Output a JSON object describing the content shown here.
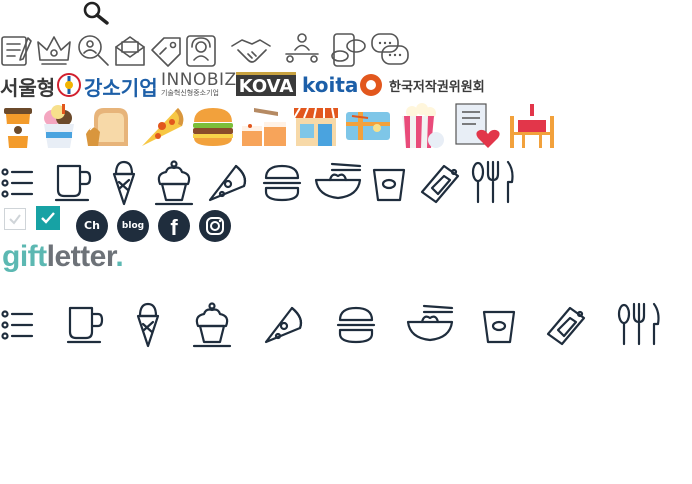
{
  "search": {
    "icon": "search-icon"
  },
  "outline_icons": [
    "form-icon",
    "crown-icon",
    "people-search-icon",
    "mail-icon",
    "coupon-tag-icon",
    "support-agent-icon",
    "handshake-icon",
    "org-chart-icon",
    "mobile-chat-icon",
    "chat-bubbles-icon"
  ],
  "certifications": {
    "seoul": "서울형",
    "gangso": "강소기업",
    "innobiz": "INNOBIZ",
    "innobiz_sub": "기술혁신형중소기업",
    "kova": "KOVA",
    "koita": "koita",
    "copyright": "한국저작권위원회"
  },
  "color_icons": [
    "coffee-cup-icon",
    "ice-cream-cup-icon",
    "bread-icon",
    "pizza-slice-icon",
    "hamburger-icon",
    "cake-slices-icon",
    "store-icon",
    "gift-card-icon",
    "popcorn-icon",
    "letter-heart-icon",
    "dining-table-icon"
  ],
  "navy_icons": [
    "list-icon",
    "mug-icon",
    "ice-cream-cone-icon",
    "cupcake-icon",
    "pizza-icon",
    "burger-icon",
    "noodle-bowl-icon",
    "takeout-cup-icon",
    "ticket-icon",
    "cutlery-icon"
  ],
  "checkboxes": {
    "unchecked": "unchecked-checkbox-icon",
    "checked": "checked-checkbox-icon"
  },
  "social": {
    "channel": "Ch",
    "blog": "blog",
    "facebook": "f",
    "instagram": "instagram-icon"
  },
  "brand": {
    "gift": "gift",
    "letter": "letter",
    "dot": "."
  },
  "colors": {
    "brand_teal": "#5cb8b2",
    "brand_gray": "#6d7278",
    "navy": "#1f2d3d",
    "check_teal": "#17a2a4"
  }
}
